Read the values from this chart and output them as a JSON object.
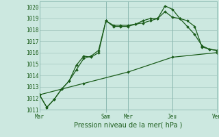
{
  "background_color": "#cce8e0",
  "grid_color": "#aaccc4",
  "line_color": "#1a5c1a",
  "xlabel": "Pression niveau de la mer( hPa )",
  "ylim": [
    1011,
    1020.5
  ],
  "yticks": [
    1011,
    1012,
    1013,
    1014,
    1015,
    1016,
    1017,
    1018,
    1019,
    1020
  ],
  "day_labels": [
    "Mar",
    "Sam",
    "Mer",
    "Jeu",
    "Ven"
  ],
  "day_positions": [
    0,
    9,
    12,
    18,
    24
  ],
  "xlim": [
    0,
    24
  ],
  "line1_x": [
    0,
    1,
    2,
    3,
    4,
    5,
    6,
    7,
    8,
    9,
    10,
    11,
    12,
    13,
    14,
    15,
    16,
    17,
    18,
    19,
    20,
    21,
    22,
    23,
    24
  ],
  "line1_y": [
    1012.3,
    1011.2,
    1011.9,
    1012.8,
    1013.5,
    1014.9,
    1015.7,
    1015.6,
    1016.0,
    1018.8,
    1018.4,
    1018.4,
    1018.4,
    1018.5,
    1018.8,
    1019.0,
    1019.0,
    1020.1,
    1019.8,
    1019.0,
    1018.3,
    1017.6,
    1016.6,
    1016.3,
    1016.2
  ],
  "line2_x": [
    0,
    1,
    2,
    3,
    4,
    5,
    6,
    7,
    8,
    9,
    10,
    11,
    12,
    13,
    14,
    15,
    16,
    17,
    18,
    19,
    20,
    21,
    22,
    23,
    24
  ],
  "line2_y": [
    1012.3,
    1011.2,
    1011.9,
    1012.8,
    1013.5,
    1014.5,
    1015.5,
    1015.7,
    1016.2,
    1018.8,
    1018.3,
    1018.3,
    1018.3,
    1018.5,
    1018.6,
    1018.8,
    1019.0,
    1019.6,
    1019.1,
    1019.0,
    1018.8,
    1018.3,
    1016.5,
    1016.3,
    1016.2
  ],
  "line3_x": [
    0,
    6,
    12,
    18,
    24
  ],
  "line3_y": [
    1012.3,
    1013.3,
    1014.3,
    1015.6,
    1016.0
  ],
  "marker_size": 2.0,
  "linewidth": 0.9,
  "tick_fontsize": 5.5,
  "xlabel_fontsize": 7.0
}
